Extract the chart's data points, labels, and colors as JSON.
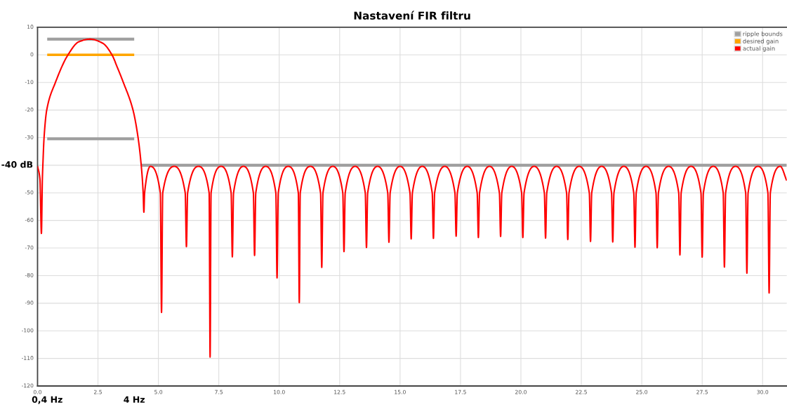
{
  "chart_data": {
    "type": "line",
    "title": "Nastavení FIR filtru",
    "xlim": [
      0,
      31
    ],
    "xticks": [
      {
        "value": 0,
        "label": "0.0"
      },
      {
        "value": 2.5,
        "label": "2.5"
      },
      {
        "value": 5,
        "label": "5.0"
      },
      {
        "value": 7.5,
        "label": "7.5"
      },
      {
        "value": 10,
        "label": "10.0"
      },
      {
        "value": 12.5,
        "label": "12.5"
      },
      {
        "value": 15,
        "label": "15.0"
      },
      {
        "value": 17.5,
        "label": "17.5"
      },
      {
        "value": 20,
        "label": "20.0"
      },
      {
        "value": 22.5,
        "label": "22.5"
      },
      {
        "value": 25,
        "label": "25.0"
      },
      {
        "value": 27.5,
        "label": "27.5"
      },
      {
        "value": 30,
        "label": "30.0"
      }
    ],
    "ylim": [
      -120,
      10
    ],
    "yticks": [
      10,
      0,
      -10,
      -20,
      -30,
      {
        "value": -40,
        "label": null
      },
      -50,
      -60,
      -70,
      -80,
      -90,
      -100,
      -110,
      -120
    ],
    "grid": true,
    "legend": "top right",
    "series": [
      {
        "name": "ripple bounds",
        "color": "#a0a0a0",
        "x": [
          0.4,
          4.0
        ],
        "values": [
          5.7,
          5.7
        ]
      },
      {
        "color": "#a0a0a0",
        "x": [
          0.4,
          4.0
        ],
        "values": [
          -30.4,
          -30.4
        ]
      },
      {
        "color": "#a0a0a0",
        "x": [
          4.3,
          31
        ],
        "values": [
          -40,
          -40
        ]
      },
      {
        "name": "desired gain",
        "color": "#ffa500",
        "x": [
          0.4,
          4.0
        ],
        "values": [
          0,
          0
        ]
      },
      {
        "name": "actual gain",
        "color": "#ff0000",
        "x": [
          0,
          0.1,
          0.16,
          0.2,
          0.22,
          0.27,
          0.38,
          0.74,
          1.26,
          1.7,
          2.17,
          2.7,
          3.08,
          3.3,
          3.55,
          3.95,
          4.16,
          4.29,
          4.37,
          4.4,
          4.43,
          4.67,
          5.08,
          5.13,
          5.18,
          5.66,
          6.11,
          6.16,
          6.21,
          6.65,
          7.1,
          7.14,
          7.18,
          7.6,
          8.01,
          8.06,
          8.11,
          8.52,
          8.93,
          8.98,
          9.03,
          9.44,
          9.86,
          9.91,
          9.96,
          10.37,
          10.79,
          10.83,
          10.87,
          11.29,
          11.71,
          11.76,
          11.81,
          12.22,
          12.63,
          12.68,
          12.73,
          13.14,
          13.56,
          13.61,
          13.66,
          14.07,
          14.49,
          14.54,
          14.59,
          15.0,
          15.41,
          15.46,
          15.51,
          15.92,
          16.33,
          16.38,
          16.43,
          16.85,
          17.27,
          17.32,
          17.37,
          17.78,
          18.19,
          18.24,
          18.29,
          18.7,
          19.11,
          19.16,
          19.21,
          19.62,
          20.03,
          20.08,
          20.13,
          20.55,
          20.97,
          21.02,
          21.07,
          21.48,
          21.89,
          21.94,
          21.99,
          22.41,
          22.83,
          22.88,
          22.93,
          23.34,
          23.75,
          23.8,
          23.85,
          24.26,
          24.67,
          24.72,
          24.77,
          25.18,
          25.59,
          25.64,
          25.69,
          26.11,
          26.53,
          26.58,
          26.63,
          27.04,
          27.45,
          27.5,
          27.55,
          27.96,
          28.37,
          28.42,
          28.47,
          28.88,
          29.3,
          29.35,
          29.4,
          29.81,
          30.22,
          30.27,
          30.32,
          30.73,
          31.0
        ],
        "values": [
          -40.3,
          -45,
          -64.7,
          -45,
          -40,
          -30,
          -20,
          -10,
          0,
          4.7,
          5.7,
          4.2,
          0,
          -4.5,
          -10,
          -20,
          -30,
          -40,
          -50,
          -57.0,
          -50,
          -40.4,
          -50,
          -93.3,
          -50,
          -40.4,
          -50,
          -69.5,
          -50,
          -40.4,
          -50,
          -109.5,
          -50,
          -40.4,
          -50,
          -73.2,
          -50,
          -40.4,
          -50,
          -72.7,
          -50,
          -40.4,
          -50,
          -80.8,
          -50,
          -40.4,
          -50,
          -89.8,
          -50,
          -40.4,
          -50,
          -77.0,
          -50,
          -40.4,
          -50,
          -71.3,
          -50,
          -40.4,
          -50,
          -69.8,
          -50,
          -40.4,
          -50,
          -67.9,
          -50,
          -40.4,
          -50,
          -66.7,
          -50,
          -40.4,
          -50,
          -66.5,
          -50,
          -40.4,
          -50,
          -65.7,
          -50,
          -40.4,
          -50,
          -66.2,
          -50,
          -40.4,
          -50,
          -65.8,
          -50,
          -40.4,
          -50,
          -66.2,
          -50,
          -40.4,
          -50,
          -66.4,
          -50,
          -40.4,
          -50,
          -66.9,
          -50,
          -40.4,
          -50,
          -67.6,
          -50,
          -40.4,
          -50,
          -67.8,
          -50,
          -40.4,
          -50,
          -69.7,
          -50,
          -40.4,
          -50,
          -69.9,
          -50,
          -40.4,
          -50,
          -72.5,
          -50,
          -40.4,
          -50,
          -73.3,
          -50,
          -40.4,
          -50,
          -76.9,
          -50,
          -40.4,
          -50,
          -79.1,
          -50,
          -40.4,
          -50,
          -86.3,
          -50,
          -40.4,
          -45.6
        ]
      }
    ],
    "annotations": [
      "-40 dB",
      "0,4 Hz",
      "4 Hz"
    ]
  }
}
